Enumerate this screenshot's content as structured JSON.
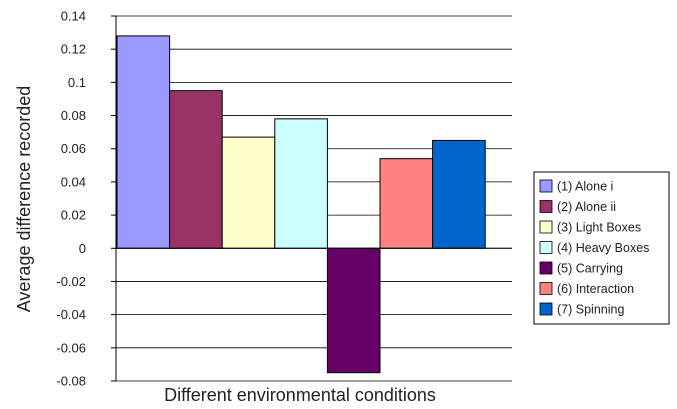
{
  "chart_data": {
    "type": "bar",
    "title": "",
    "xlabel": "Different environmental conditions",
    "ylabel": "Average difference recorded",
    "ylim": [
      -0.08,
      0.14
    ],
    "yticks": [
      "0.14",
      "0.12",
      "0.1",
      "0.08",
      "0.06",
      "0.04",
      "0.02",
      "0",
      "-0.02",
      "-0.04",
      "-0.06",
      "-0.08"
    ],
    "grid": true,
    "legend_position": "right",
    "series": [
      {
        "name": "(1) Alone i",
        "value": 0.128,
        "color": "#9999ff"
      },
      {
        "name": "(2) Alone ii",
        "value": 0.095,
        "color": "#993366"
      },
      {
        "name": "(3) Light Boxes",
        "value": 0.067,
        "color": "#ffffcc"
      },
      {
        "name": "(4) Heavy Boxes",
        "value": 0.078,
        "color": "#ccffff"
      },
      {
        "name": "(5) Carrying",
        "value": -0.075,
        "color": "#660066"
      },
      {
        "name": "(6) Interaction",
        "value": 0.054,
        "color": "#ff8080"
      },
      {
        "name": "(7) Spinning",
        "value": 0.065,
        "color": "#0066cc"
      }
    ]
  }
}
